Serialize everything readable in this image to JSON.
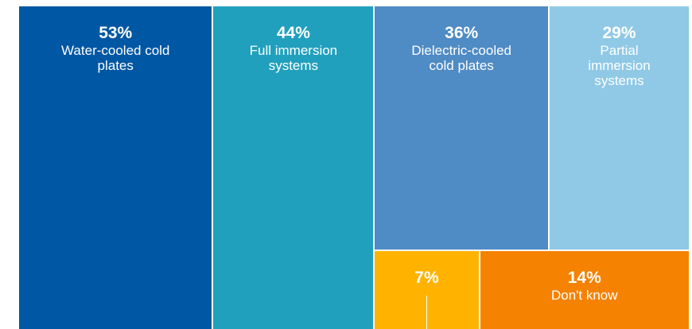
{
  "chart_data": {
    "type": "treemap",
    "categories": [
      "Water-cooled cold plates",
      "Full immersion systems",
      "Dielectric-cooled cold plates",
      "Partial immersion systems",
      null,
      "Don't know"
    ],
    "values": [
      53,
      44,
      36,
      29,
      7,
      14
    ],
    "value_labels": [
      "53%",
      "44%",
      "36%",
      "29%",
      "7%",
      "14%"
    ],
    "colors": [
      "#0057a3",
      "#21a0bd",
      "#4f8bc4",
      "#8fc9e6",
      "#ffb300",
      "#f58200"
    ]
  }
}
